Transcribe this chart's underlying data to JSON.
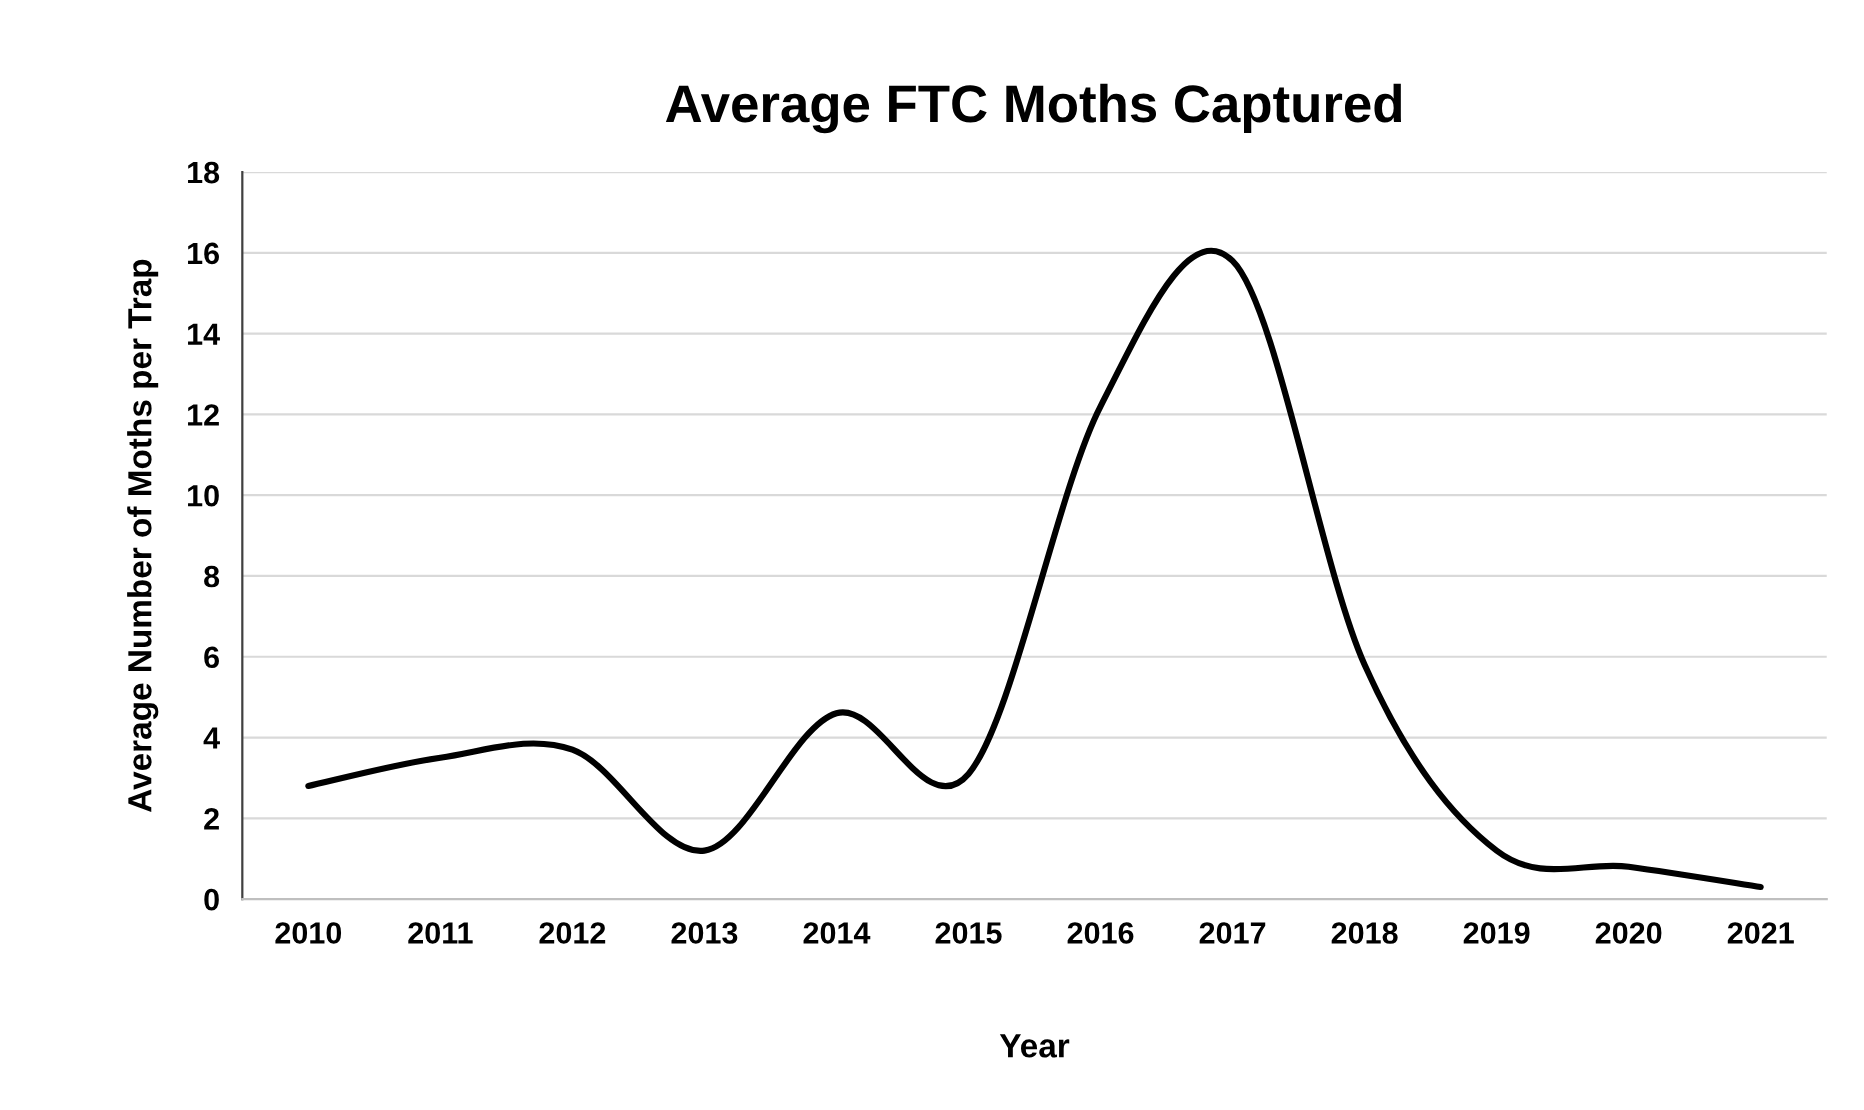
{
  "chart_data": {
    "type": "line",
    "title": "Average FTC Moths Captured",
    "xlabel": "Year",
    "ylabel": "Average Number of Moths per Trap",
    "categories": [
      "2010",
      "2011",
      "2012",
      "2013",
      "2014",
      "2015",
      "2016",
      "2017",
      "2018",
      "2019",
      "2020",
      "2021"
    ],
    "series": [
      {
        "color": "#000000",
        "values": [
          2.8,
          3.5,
          3.7,
          1.2,
          4.6,
          3.1,
          12.2,
          15.8,
          5.8,
          1.2,
          0.8,
          0.3
        ]
      }
    ],
    "ylim": [
      0,
      18
    ],
    "yticks": [
      0,
      2,
      4,
      6,
      8,
      10,
      12,
      14,
      16,
      18
    ],
    "grid": "y",
    "marker": "none",
    "line_style": "solid"
  }
}
